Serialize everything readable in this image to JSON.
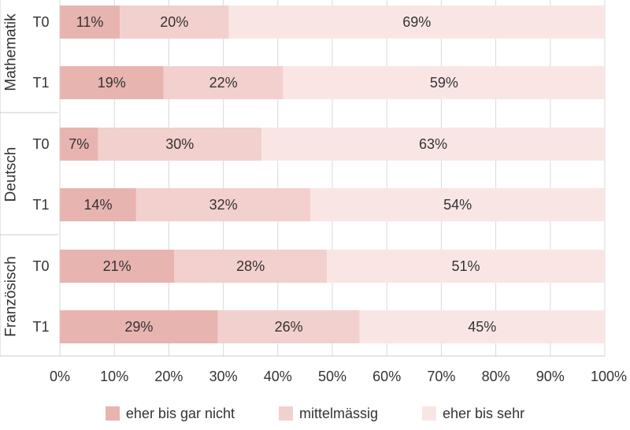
{
  "chart_data": {
    "type": "bar",
    "orientation": "horizontal",
    "stacked": true,
    "xlim": [
      0,
      100
    ],
    "x_ticks": [
      "0%",
      "10%",
      "20%",
      "30%",
      "40%",
      "50%",
      "60%",
      "70%",
      "80%",
      "90%",
      "100%"
    ],
    "grid": true,
    "legend_position": "bottom",
    "groups": [
      {
        "name": "Mathematik",
        "bars": [
          {
            "label": "T0",
            "values": [
              11,
              20,
              69
            ],
            "labels": [
              "11%",
              "20%",
              "69%"
            ]
          },
          {
            "label": "T1",
            "values": [
              19,
              22,
              59
            ],
            "labels": [
              "19%",
              "22%",
              "59%"
            ]
          }
        ]
      },
      {
        "name": "Deutsch",
        "bars": [
          {
            "label": "T0",
            "values": [
              7,
              30,
              63
            ],
            "labels": [
              "7%",
              "30%",
              "63%"
            ]
          },
          {
            "label": "T1",
            "values": [
              14,
              32,
              54
            ],
            "labels": [
              "14%",
              "32%",
              "54%"
            ]
          }
        ]
      },
      {
        "name": "Französisch",
        "bars": [
          {
            "label": "T0",
            "values": [
              21,
              28,
              51
            ],
            "labels": [
              "21%",
              "28%",
              "51%"
            ]
          },
          {
            "label": "T1",
            "values": [
              29,
              26,
              45
            ],
            "labels": [
              "29%",
              "26%",
              "45%"
            ]
          }
        ]
      }
    ],
    "series": [
      {
        "name": "eher bis gar nicht",
        "color": "#e8b4b0"
      },
      {
        "name": "mittelmässig",
        "color": "#f2d0cd"
      },
      {
        "name": "eher bis sehr",
        "color": "#f9e6e4"
      }
    ]
  }
}
